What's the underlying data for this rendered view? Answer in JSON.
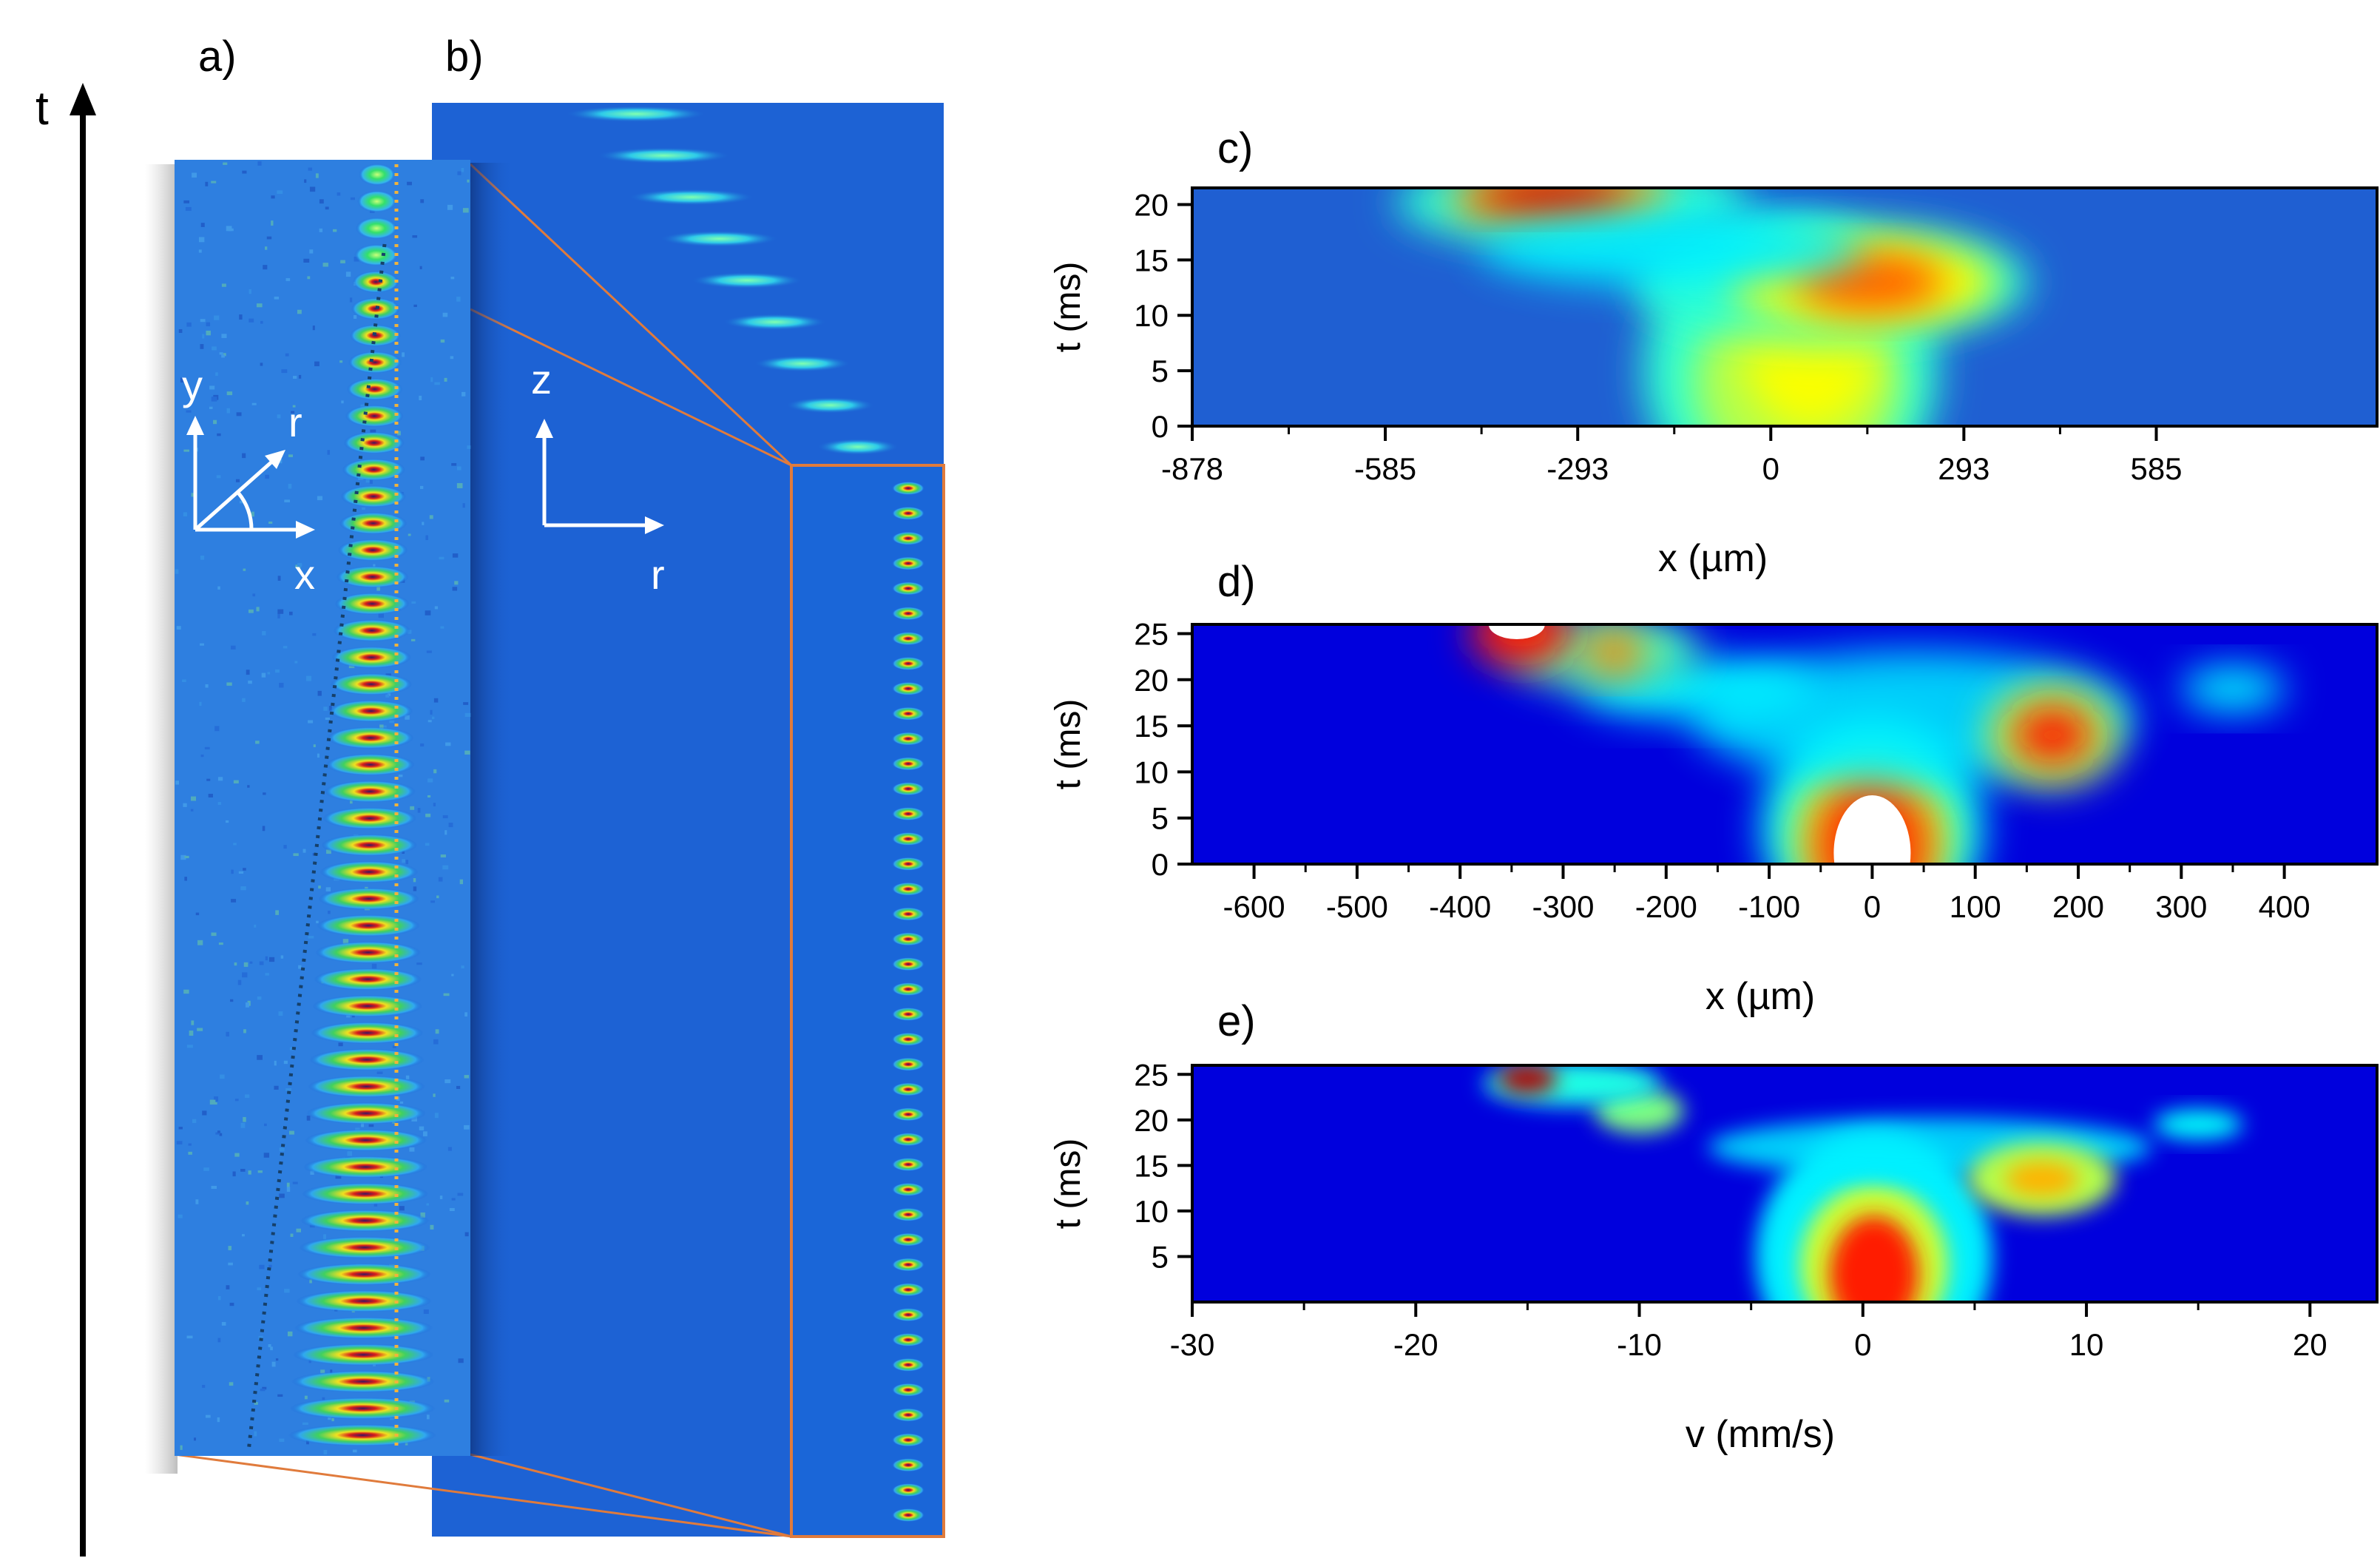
{
  "figure": {
    "time_axis_label": "t",
    "panels": {
      "a": {
        "letter": "a)",
        "axes": {
          "vertical": "y",
          "diagonal": "r",
          "horizontal": "x"
        },
        "frames": 48
      },
      "b": {
        "letter": "b)",
        "axes": {
          "vertical": "z",
          "horizontal": "r"
        },
        "frames_upper": 9,
        "frames_inset": 42
      },
      "c": {
        "letter": "c)",
        "xlabel_pre": "x (",
        "xlabel_unit": "µm",
        "xlabel_post": ")",
        "ylabel": "t (ms)",
        "xticks": [
          "-878",
          "-585",
          "-293",
          "0",
          "293",
          "585"
        ],
        "yticks": [
          "0",
          "5",
          "10",
          "15",
          "20"
        ]
      },
      "d": {
        "letter": "d)",
        "xlabel_pre": "x (",
        "xlabel_unit": "µm",
        "xlabel_post": ")",
        "ylabel": "t (ms)",
        "xticks": [
          "-600",
          "-500",
          "-400",
          "-300",
          "-200",
          "-100",
          "0",
          "100",
          "200",
          "300",
          "400"
        ],
        "yticks": [
          "0",
          "5",
          "10",
          "15",
          "20",
          "25"
        ]
      },
      "e": {
        "letter": "e)",
        "xlabel": "v (mm/s)",
        "ylabel": "t (ms)",
        "xticks": [
          "-30",
          "-20",
          "-10",
          "0",
          "10",
          "20"
        ],
        "yticks": [
          "5",
          "10",
          "15",
          "20",
          "25"
        ]
      }
    }
  },
  "chart_data": [
    {
      "panel": "c",
      "type": "heatmap",
      "x_unit": "µm",
      "y_unit": "ms",
      "xlim": [
        -878,
        920
      ],
      "ylim": [
        0,
        21.5
      ],
      "xticks": [
        -878,
        -585,
        -293,
        0,
        293,
        585
      ],
      "yticks": [
        0,
        5,
        10,
        15,
        20
      ],
      "colormap": "jet",
      "hotspots": [
        {
          "x": -330,
          "t": 20.5,
          "level": 0.95
        },
        {
          "x": 120,
          "t": 13,
          "level": 0.75
        },
        {
          "x": 20,
          "t": 3,
          "level": 0.6
        }
      ]
    },
    {
      "panel": "d",
      "type": "heatmap",
      "x_unit": "µm",
      "y_unit": "ms",
      "xlim": [
        -660,
        490
      ],
      "ylim": [
        0,
        26
      ],
      "xticks": [
        -600,
        -500,
        -400,
        -300,
        -200,
        -100,
        0,
        100,
        200,
        300,
        400
      ],
      "yticks": [
        0,
        5,
        10,
        15,
        20,
        25
      ],
      "colormap": "jet",
      "hotspots": [
        {
          "x": 0,
          "t": 3,
          "level": 1.0
        },
        {
          "x": 175,
          "t": 14,
          "level": 0.85
        },
        {
          "x": -345,
          "t": 25,
          "level": 1.0
        },
        {
          "x": -250,
          "t": 22.5,
          "level": 0.75
        }
      ]
    },
    {
      "panel": "e",
      "type": "heatmap",
      "x_unit": "mm/s",
      "y_unit": "ms",
      "xlim": [
        -30,
        23
      ],
      "ylim": [
        0,
        26
      ],
      "xticks": [
        -30,
        -20,
        -10,
        0,
        10,
        20
      ],
      "yticks": [
        5,
        10,
        15,
        20,
        25
      ],
      "colormap": "jet",
      "hotspots": [
        {
          "v": 0,
          "t": 4,
          "level": 0.9
        },
        {
          "v": 8,
          "t": 13.5,
          "level": 0.65
        },
        {
          "v": -15,
          "t": 24.5,
          "level": 0.95
        }
      ]
    }
  ]
}
